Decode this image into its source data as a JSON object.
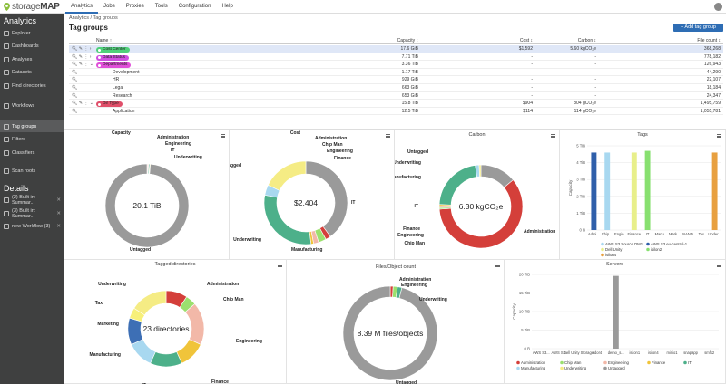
{
  "app": {
    "logo_text": "storage",
    "logo_bold": "MAP",
    "menu": [
      "Analytics",
      "Jobs",
      "Proxies",
      "Tools",
      "Configuration",
      "Help"
    ]
  },
  "sidebar": {
    "analytics_title": "Analytics",
    "items": [
      "Explorer",
      "Dashboards",
      "Analyses",
      "Datasets",
      "Find directories",
      "Workflows",
      "Tag groups",
      "Filters",
      "Classifiers",
      "Scan roots"
    ],
    "details_title": "Details",
    "details": [
      "(2) Built in: Summar...",
      "(3) Built in: Summar...",
      "new Workflow (3)"
    ]
  },
  "page": {
    "breadcrumb": "Analytics / Tag groups",
    "title": "Tag groups",
    "add_button": "+ Add tag group"
  },
  "table": {
    "headers": {
      "name": "Name ↑",
      "capacity": "Capacity ↕",
      "cost": "Cost ↕",
      "carbon": "Carbon ↕",
      "filecount": "File count ↕"
    },
    "rows": [
      {
        "name": "Cost Center",
        "tag": true,
        "color": "#4fd07a",
        "capacity": "17.6 GiB",
        "cost": "$1,592",
        "carbon": "5.60 kgCO₂e",
        "files": "368,268",
        "selected": true,
        "level": 0
      },
      {
        "name": "Data Status",
        "tag": true,
        "color": "#d04fe0",
        "capacity": "7.71 TiB",
        "cost": "-",
        "carbon": "-",
        "files": "778,182",
        "level": 0
      },
      {
        "name": "Departments",
        "tag": true,
        "color": "#e04fd8",
        "capacity": "3.36 TiB",
        "cost": "-",
        "carbon": "-",
        "files": "126,943",
        "level": 0,
        "expanded": true
      },
      {
        "name": "Development",
        "capacity": "1.17 TiB",
        "cost": "-",
        "carbon": "-",
        "files": "44,290",
        "level": 1
      },
      {
        "name": "HR",
        "capacity": "929 GiB",
        "cost": "-",
        "carbon": "-",
        "files": "22,107",
        "level": 1
      },
      {
        "name": "Legal",
        "capacity": "663 GiB",
        "cost": "-",
        "carbon": "-",
        "files": "18,184",
        "level": 1
      },
      {
        "name": "Research",
        "capacity": "653 GiB",
        "cost": "-",
        "carbon": "-",
        "files": "24,347",
        "level": 1
      },
      {
        "name": "Dir Type",
        "tag": true,
        "color": "#e04f6a",
        "capacity": "15.8 TiB",
        "cost": "$904",
        "carbon": "804 gCO₂e",
        "files": "1,495,759",
        "level": 0,
        "expanded": true
      },
      {
        "name": "Application",
        "capacity": "12.5 TiB",
        "cost": "$114",
        "carbon": "114 gCO₂e",
        "files": "1,055,781",
        "level": 1
      }
    ]
  },
  "charts": {
    "capacity": {
      "title": "Capacity",
      "center": "20.1 TiB",
      "labels": [
        "Capacity",
        "Administration",
        "Engineering",
        "IT",
        "Underwriting",
        "Untagged"
      ]
    },
    "cost": {
      "title": "Cost",
      "center": "$2,404",
      "labels": [
        "Cost",
        "Administration",
        "Chip Man",
        "Engineering",
        "Finance",
        "IT",
        "Manufacturing",
        "Underwriting",
        "Untagged"
      ]
    },
    "carbon": {
      "title": "Carbon",
      "center": "6.30 kgCO₂e",
      "labels": [
        "Untagged",
        "Underwriting",
        "Manufacturing",
        "IT",
        "Finance",
        "Engineering",
        "Chip Man",
        "Administration"
      ]
    },
    "tagged_dirs": {
      "title": "Tagged directories",
      "center": "23 directories",
      "labels": [
        "Underwriting",
        "Administration",
        "Chip Man",
        "Tax",
        "Marketing",
        "Engineering",
        "Manufacturing",
        "IT",
        "Finance"
      ]
    },
    "files": {
      "title": "Files/Object count",
      "center": "8.39 M files/objects",
      "labels": [
        "Administration",
        "Engineering",
        "Underwriting",
        "Untagged"
      ]
    }
  },
  "chart_data": [
    {
      "type": "bar",
      "title": "Tags",
      "ylabel": "Capacity",
      "yticks": [
        "0 B",
        "1 TiB",
        "2 TiB",
        "3 TiB",
        "4 TiB",
        "5 TiB"
      ],
      "ylim": [
        0,
        5
      ],
      "categories": [
        "Admi...",
        "Chip ...",
        "Engin...",
        "Finance",
        "IT",
        "Manu...",
        "Mark...",
        "NAND",
        "Tax",
        "Under..."
      ],
      "series": [
        {
          "name": "AWS S3 Source DM1",
          "color": "#a8d8f0",
          "values": [
            0,
            4.6,
            0,
            0,
            0,
            0,
            0,
            0,
            0,
            0
          ]
        },
        {
          "name": "AWS S3 eu-central-1",
          "color": "#2f5faa",
          "values": [
            4.6,
            0,
            0,
            0,
            0,
            0,
            0,
            0,
            0,
            0
          ]
        },
        {
          "name": "Dell Unity",
          "color": "#e8ef8a",
          "values": [
            0,
            0,
            0,
            4.6,
            0,
            0,
            0,
            0,
            0,
            0
          ]
        },
        {
          "name": "isilon2",
          "color": "#88e070",
          "values": [
            0,
            0,
            0,
            0,
            4.7,
            0,
            0,
            0,
            0,
            0
          ]
        },
        {
          "name": "isilon4",
          "color": "#e8a040",
          "values": [
            0,
            0,
            0,
            0,
            0,
            0,
            0,
            0,
            0,
            4.6
          ]
        }
      ]
    },
    {
      "type": "bar",
      "title": "Servers",
      "ylabel": "Capacity",
      "yticks": [
        "0 B",
        "5 TiB",
        "10 TiB",
        "15 TiB",
        "20 TiB"
      ],
      "ylim": [
        0,
        20
      ],
      "categories": [
        "AWS S3...",
        "AWS S3...",
        "Dell Unity Storage",
        "cdor4",
        "demo_s...",
        "isilon1",
        "isilon4",
        "minio1",
        "snapapp",
        "smfs2"
      ],
      "values": [
        0,
        0,
        0,
        0,
        19.6,
        0,
        0,
        0,
        0,
        0
      ],
      "legend": [
        "Administration",
        "Chip Man",
        "Engineering",
        "Finance",
        "IT",
        "Manufacturing",
        "Underwriting",
        "Untagged"
      ]
    }
  ],
  "colors": {
    "accent": "#2e6db4",
    "untagged": "#9a9a9a",
    "admin": "#d43f3a",
    "chip": "#9be06e",
    "eng": "#f2b8a8",
    "finance": "#f0c43a",
    "it": "#4db08a",
    "manuf": "#a8d8f0",
    "underwriting": "#f5ec84",
    "tax": "#f7f07a",
    "marketing": "#3d6fb5"
  }
}
